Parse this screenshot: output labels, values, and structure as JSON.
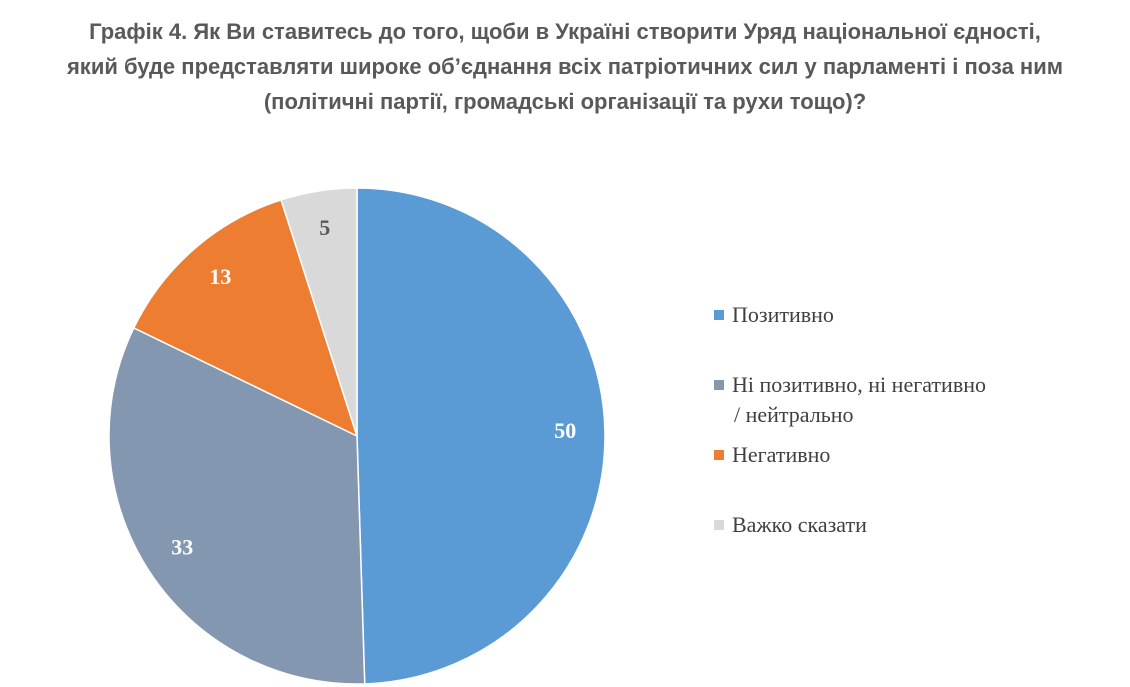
{
  "title_lines": [
    "Графік 4. Як Ви ставитесь до того, щоби в Україні створити Уряд національної єдності,",
    "який буде представляти широке об’єднання всіх патріотичних сил у парламенті і поза ним",
    "(політичні партії, громадські організації та рухи тощо)?"
  ],
  "chart_data": {
    "type": "pie",
    "title": "Графік 4. Як Ви ставитесь до того, щоби в Україні створити Уряд національної єдності, який буде представляти широке об’єднання всіх патріотичних сил у парламенті і поза ним (політичні партії, громадські організації та рухи тощо)?",
    "slices": [
      {
        "label": "Позитивно",
        "value": 50,
        "color": "#5B9BD5",
        "label_color": "#ffffff"
      },
      {
        "label": "Ні позитивно, ні негативно / нейтрально",
        "label_lines": [
          "Ні позитивно, ні негативно",
          "/ нейтрально"
        ],
        "value": 33,
        "color": "#8497B0",
        "label_color": "#ffffff"
      },
      {
        "label": "Негативно",
        "value": 13,
        "color": "#ED7D31",
        "label_color": "#ffffff"
      },
      {
        "label": "Важко сказати",
        "value": 5,
        "color": "#D9D9D9",
        "label_color": "#595959"
      }
    ],
    "start_angle": "12 o'clock",
    "direction": "clockwise",
    "legend_position": "right"
  }
}
